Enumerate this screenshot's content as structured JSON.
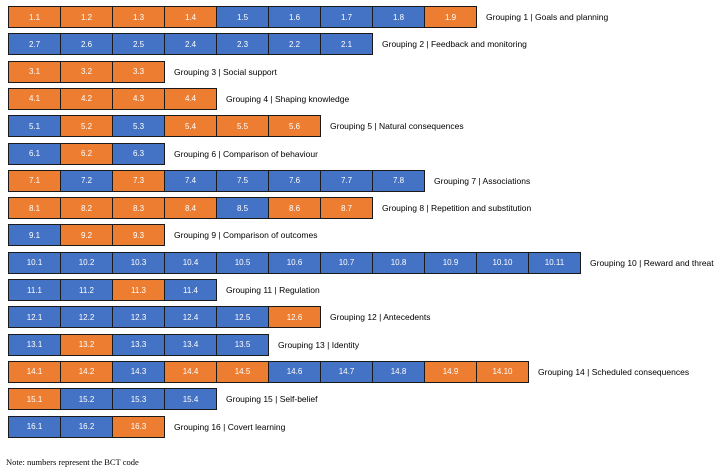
{
  "colors": {
    "blue": "#4472C4",
    "orange": "#ED7D31",
    "border": "#1a1a1a"
  },
  "groupings": [
    {
      "label": "Grouping 1 | Goals and planning",
      "cells": [
        {
          "code": "1.1",
          "color": "orange"
        },
        {
          "code": "1.2",
          "color": "orange"
        },
        {
          "code": "1.3",
          "color": "orange"
        },
        {
          "code": "1.4",
          "color": "orange"
        },
        {
          "code": "1.5",
          "color": "blue"
        },
        {
          "code": "1.6",
          "color": "blue"
        },
        {
          "code": "1.7",
          "color": "blue"
        },
        {
          "code": "1.8",
          "color": "blue"
        },
        {
          "code": "1.9",
          "color": "orange"
        }
      ]
    },
    {
      "label": "Grouping 2 | Feedback and monitoring",
      "cells": [
        {
          "code": "2.7",
          "color": "blue"
        },
        {
          "code": "2.6",
          "color": "blue"
        },
        {
          "code": "2.5",
          "color": "blue"
        },
        {
          "code": "2.4",
          "color": "blue"
        },
        {
          "code": "2.3",
          "color": "blue"
        },
        {
          "code": "2.2",
          "color": "blue"
        },
        {
          "code": "2.1",
          "color": "blue"
        }
      ]
    },
    {
      "label": "Grouping 3 |  Social support",
      "cells": [
        {
          "code": "3.1",
          "color": "orange"
        },
        {
          "code": "3.2",
          "color": "orange"
        },
        {
          "code": "3.3",
          "color": "orange"
        }
      ]
    },
    {
      "label": "Grouping 4 | Shaping knowledge",
      "cells": [
        {
          "code": "4.1",
          "color": "orange"
        },
        {
          "code": "4.2",
          "color": "orange"
        },
        {
          "code": "4.3",
          "color": "orange"
        },
        {
          "code": "4.4",
          "color": "orange"
        }
      ]
    },
    {
      "label": "Grouping 5 | Natural consequences",
      "cells": [
        {
          "code": "5.1",
          "color": "blue"
        },
        {
          "code": "5.2",
          "color": "orange"
        },
        {
          "code": "5.3",
          "color": "blue"
        },
        {
          "code": "5.4",
          "color": "orange"
        },
        {
          "code": "5.5",
          "color": "orange"
        },
        {
          "code": "5.6",
          "color": "orange"
        }
      ]
    },
    {
      "label": "Grouping 6 | Comparison of behaviour",
      "cells": [
        {
          "code": "6.1",
          "color": "blue"
        },
        {
          "code": "6.2",
          "color": "orange"
        },
        {
          "code": "6.3",
          "color": "blue"
        }
      ]
    },
    {
      "label": "Grouping 7 | Associations",
      "cells": [
        {
          "code": "7.1",
          "color": "orange"
        },
        {
          "code": "7.2",
          "color": "blue"
        },
        {
          "code": "7.3",
          "color": "orange"
        },
        {
          "code": "7.4",
          "color": "blue"
        },
        {
          "code": "7.5",
          "color": "blue"
        },
        {
          "code": "7.6",
          "color": "blue"
        },
        {
          "code": "7.7",
          "color": "blue"
        },
        {
          "code": "7.8",
          "color": "blue"
        }
      ]
    },
    {
      "label": "Grouping 8 | Repetition and substitution",
      "cells": [
        {
          "code": "8.1",
          "color": "orange"
        },
        {
          "code": "8.2",
          "color": "orange"
        },
        {
          "code": "8.3",
          "color": "orange"
        },
        {
          "code": "8.4",
          "color": "orange"
        },
        {
          "code": "8.5",
          "color": "blue"
        },
        {
          "code": "8.6",
          "color": "orange"
        },
        {
          "code": "8.7",
          "color": "orange"
        }
      ]
    },
    {
      "label": "Grouping 9 | Comparison of outcomes",
      "cells": [
        {
          "code": "9.1",
          "color": "blue"
        },
        {
          "code": "9.2",
          "color": "orange"
        },
        {
          "code": "9.3",
          "color": "orange"
        }
      ]
    },
    {
      "label": "Grouping 10 |  Reward and threat",
      "cells": [
        {
          "code": "10.1",
          "color": "blue"
        },
        {
          "code": "10.2",
          "color": "blue"
        },
        {
          "code": "10.3",
          "color": "blue"
        },
        {
          "code": "10.4",
          "color": "blue"
        },
        {
          "code": "10.5",
          "color": "blue"
        },
        {
          "code": "10.6",
          "color": "blue"
        },
        {
          "code": "10.7",
          "color": "blue"
        },
        {
          "code": "10.8",
          "color": "blue"
        },
        {
          "code": "10.9",
          "color": "blue"
        },
        {
          "code": "10.10",
          "color": "blue"
        },
        {
          "code": "10.11",
          "color": "blue"
        }
      ]
    },
    {
      "label": "Grouping 11 | Regulation",
      "cells": [
        {
          "code": "11.1",
          "color": "blue"
        },
        {
          "code": "11.2",
          "color": "blue"
        },
        {
          "code": "11.3",
          "color": "orange"
        },
        {
          "code": "11.4",
          "color": "blue"
        }
      ]
    },
    {
      "label": "Grouping 12 | Antecedents",
      "cells": [
        {
          "code": "12.1",
          "color": "blue"
        },
        {
          "code": "12.2",
          "color": "blue"
        },
        {
          "code": "12.3",
          "color": "blue"
        },
        {
          "code": "12.4",
          "color": "blue"
        },
        {
          "code": "12.5",
          "color": "blue"
        },
        {
          "code": "12.6",
          "color": "orange"
        }
      ]
    },
    {
      "label": "Grouping 13  |  Identity",
      "cells": [
        {
          "code": "13.1",
          "color": "blue"
        },
        {
          "code": "13.2",
          "color": "orange"
        },
        {
          "code": "13.3",
          "color": "blue"
        },
        {
          "code": "13.4",
          "color": "blue"
        },
        {
          "code": "13.5",
          "color": "blue"
        }
      ]
    },
    {
      "label": "Grouping 14 |  Scheduled consequences",
      "cells": [
        {
          "code": "14.1",
          "color": "orange"
        },
        {
          "code": "14.2",
          "color": "orange"
        },
        {
          "code": "14.3",
          "color": "blue"
        },
        {
          "code": "14.4",
          "color": "orange"
        },
        {
          "code": "14.5",
          "color": "orange"
        },
        {
          "code": "14.6",
          "color": "blue"
        },
        {
          "code": "14.7",
          "color": "blue"
        },
        {
          "code": "14.8",
          "color": "blue"
        },
        {
          "code": "14.9",
          "color": "orange"
        },
        {
          "code": "14.10",
          "color": "orange"
        }
      ]
    },
    {
      "label": "Grouping 15 | Self-belief",
      "cells": [
        {
          "code": "15.1",
          "color": "orange"
        },
        {
          "code": "15.2",
          "color": "blue"
        },
        {
          "code": "15.3",
          "color": "blue"
        },
        {
          "code": "15.4",
          "color": "blue"
        }
      ]
    },
    {
      "label": "Grouping 16 | Covert learning",
      "cells": [
        {
          "code": "16.1",
          "color": "blue"
        },
        {
          "code": "16.2",
          "color": "blue"
        },
        {
          "code": "16.3",
          "color": "orange"
        }
      ]
    }
  ],
  "note": "Note: numbers represent the BCT code"
}
